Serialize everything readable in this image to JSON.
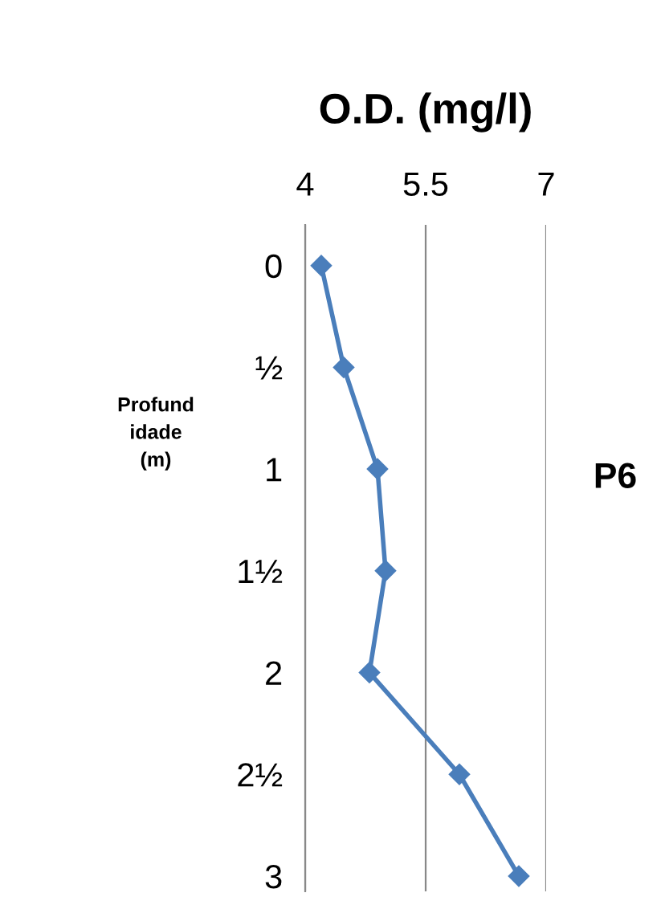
{
  "chart_data": {
    "type": "line",
    "orientation": "horizontal",
    "title": "O.D. (mg/l)",
    "ylabel": "Profund\nidade\n(m)",
    "categories": [
      "0",
      "½",
      "1",
      "1½",
      "2",
      "2½",
      "3"
    ],
    "series": [
      {
        "color": "#4a7ebb",
        "values": [
          4.2,
          4.48,
          4.9,
          5.0,
          4.8,
          5.92,
          6.66
        ]
      }
    ],
    "xlim": [
      4,
      7
    ],
    "xticks": [
      4,
      5.5,
      7
    ],
    "grid": "x",
    "marker": "diamond",
    "line_style": "solid",
    "annotations": [
      "P6"
    ]
  }
}
